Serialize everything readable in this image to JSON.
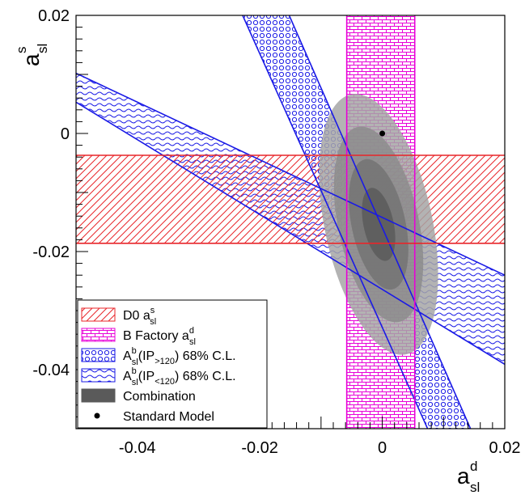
{
  "chart_data": {
    "type": "contour",
    "xlim": [
      -0.05,
      0.02
    ],
    "ylim": [
      -0.05,
      0.02
    ],
    "x_ticks": [
      {
        "value": -0.04,
        "label": "-0.04"
      },
      {
        "value": -0.02,
        "label": "-0.02"
      },
      {
        "value": 0,
        "label": "0"
      },
      {
        "value": 0.02,
        "label": "0.02"
      }
    ],
    "y_ticks": [
      {
        "value": 0.02,
        "label": "0.02"
      },
      {
        "value": 0,
        "label": "0"
      },
      {
        "value": -0.02,
        "label": "-0.02"
      },
      {
        "value": -0.04,
        "label": "-0.04"
      }
    ],
    "xlabel": {
      "main": "a",
      "sup": "d",
      "sub": "sl"
    },
    "ylabel": {
      "main": "a",
      "sup": "s",
      "sub": "sl"
    },
    "bands": {
      "d0_asl_s": {
        "y": [
          -0.0186,
          -0.0037
        ],
        "color": "#e8262a"
      },
      "bfactory_asl_d": {
        "x": [
          -0.0058,
          0.0053
        ],
        "color": "#e800d8"
      },
      "ip_gt120": {
        "x_at_top": [
          -0.0228,
          -0.0152
        ],
        "x_at_bottom": [
          0.0074,
          0.0144
        ],
        "color": "#1a1ae6"
      },
      "ip_lt120": {
        "y_at_left": [
          0.0053,
          0.0102
        ],
        "y_at_right": [
          -0.0391,
          -0.024
        ],
        "color": "#1a1ae6"
      }
    },
    "combination": {
      "center": [
        -0.0006,
        -0.0154
      ],
      "semi_axes": [
        0.0088,
        0.0225
      ],
      "levels": [
        "#a6a6a6",
        "#8c8c8c",
        "#737373",
        "#5a5a5a"
      ],
      "scales": [
        1.0,
        0.75,
        0.5,
        0.28
      ]
    },
    "standard_model": {
      "x": 0,
      "y": 0
    },
    "legend": {
      "position": "bottom-left",
      "entries": [
        {
          "key": "d0",
          "text": "D0 a",
          "sup": "s",
          "sub": "sl",
          "after": ""
        },
        {
          "key": "bf",
          "text": "B Factory a",
          "sup": "d",
          "sub": "sl",
          "after": ""
        },
        {
          "key": "ipgt",
          "text": "A",
          "sup": "b",
          "sub": "sl",
          "after": "(IP",
          "after_sub": ">120",
          "tail": ") 68% C.L."
        },
        {
          "key": "iplt",
          "text": "A",
          "sup": "b",
          "sub": "sl",
          "after": "(IP",
          "after_sub": "<120",
          "tail": ") 68% C.L."
        },
        {
          "key": "comb",
          "text": "Combination"
        },
        {
          "key": "sm",
          "text": "Standard Model"
        }
      ]
    }
  }
}
